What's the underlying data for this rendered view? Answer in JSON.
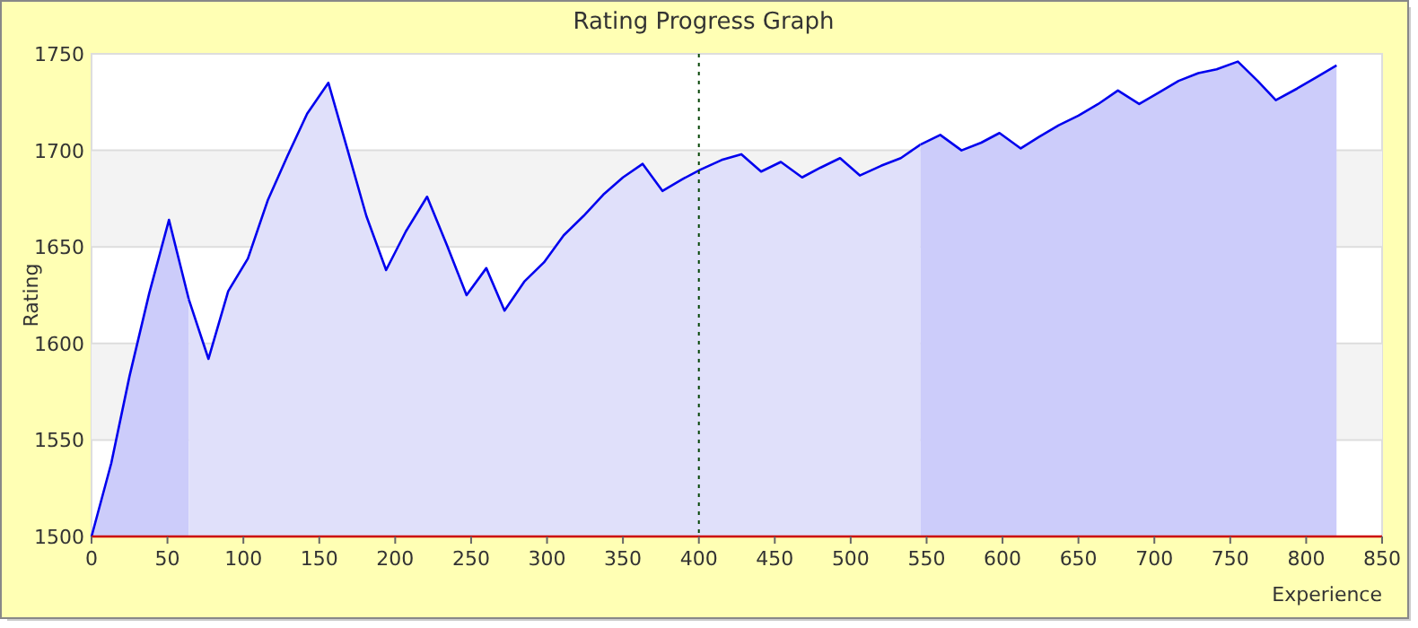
{
  "chart_data": {
    "type": "area",
    "title": "Rating Progress Graph",
    "xlabel": "Experience",
    "ylabel": "Rating",
    "xlim": [
      0,
      850
    ],
    "ylim": [
      1500,
      1750
    ],
    "xticks": [
      0,
      50,
      100,
      150,
      200,
      250,
      300,
      350,
      400,
      450,
      500,
      550,
      600,
      650,
      700,
      750,
      800,
      850
    ],
    "yticks": [
      1500,
      1550,
      1600,
      1650,
      1700,
      1750
    ],
    "grid": "y",
    "line_style": "solid",
    "ref_lines": [
      {
        "axis": "x",
        "value": 400,
        "color": "#004400",
        "line_style": "dotted"
      }
    ],
    "series": [
      {
        "color": "#ccccfa",
        "x": [
          0,
          13,
          25,
          38,
          51,
          64
        ],
        "values": [
          1500,
          1538,
          1583,
          1626,
          1664,
          1623
        ]
      },
      {
        "color": "#e0e0fa",
        "x": [
          64,
          77,
          90,
          103,
          116,
          129,
          142,
          156,
          168,
          181,
          194,
          207,
          221,
          234,
          247,
          260,
          272,
          285,
          298,
          311,
          324,
          337,
          350,
          363,
          376,
          389,
          401,
          415,
          428,
          441,
          454,
          468,
          480,
          493,
          506,
          520,
          533,
          546
        ],
        "values": [
          1623,
          1592,
          1627,
          1644,
          1674,
          1697,
          1719,
          1735,
          1702,
          1666,
          1638,
          1658,
          1676,
          1651,
          1625,
          1639,
          1617,
          1632,
          1642,
          1656,
          1666,
          1677,
          1686,
          1693,
          1679,
          1685,
          1690,
          1695,
          1698,
          1689,
          1694,
          1686,
          1691,
          1696,
          1687,
          1692,
          1696,
          1703
        ]
      },
      {
        "color": "#ccccfa",
        "x": [
          546,
          559,
          573,
          586,
          598,
          612,
          624,
          637,
          650,
          663,
          676,
          690,
          703,
          716,
          729,
          741,
          755,
          768,
          780,
          794,
          807,
          820
        ],
        "values": [
          1703,
          1708,
          1700,
          1704,
          1709,
          1701,
          1707,
          1713,
          1718,
          1724,
          1731,
          1724,
          1730,
          1736,
          1740,
          1742,
          1746,
          1736,
          1726,
          1732,
          1738,
          1744
        ]
      }
    ]
  }
}
